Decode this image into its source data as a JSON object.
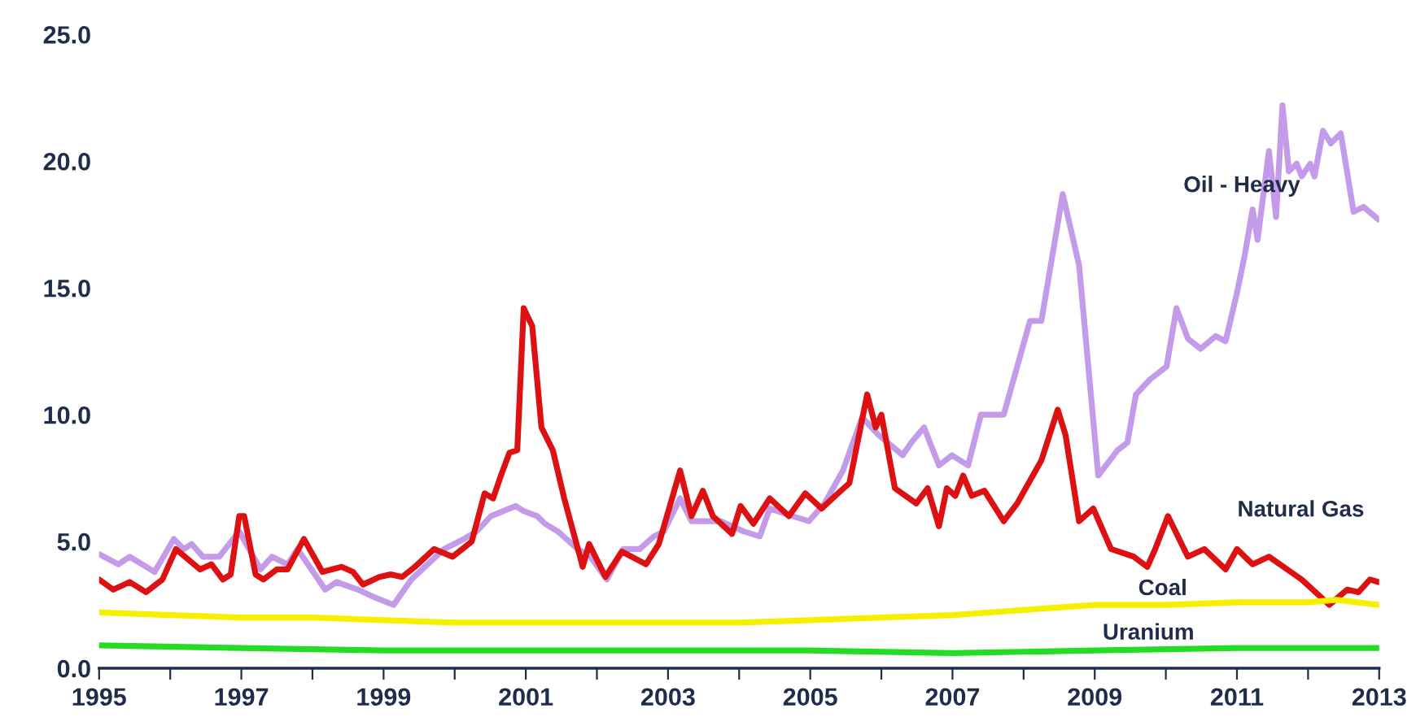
{
  "chart_data": {
    "type": "line",
    "xlim": [
      1995,
      2013
    ],
    "ylim": [
      0,
      25
    ],
    "xticks": [
      1995,
      {
        "value": 1996,
        "label": null
      },
      1997,
      {
        "value": 1998,
        "label": null
      },
      1999,
      {
        "value": 2000,
        "label": null
      },
      2001,
      {
        "value": 2002,
        "label": null
      },
      2003,
      {
        "value": 2004,
        "label": null
      },
      2005,
      {
        "value": 2006,
        "label": null
      },
      2007,
      {
        "value": 2008,
        "label": null
      },
      2009,
      {
        "value": 2010,
        "label": null
      },
      2011,
      {
        "value": 2012,
        "label": null
      },
      2013
    ],
    "yticks": [
      {
        "value": 0,
        "label": "0.0"
      },
      {
        "value": 5,
        "label": "5.0"
      },
      {
        "value": 10,
        "label": "10.0"
      },
      {
        "value": 15,
        "label": "15.0"
      },
      {
        "value": 20,
        "label": "20.0"
      },
      {
        "value": 25,
        "label": "25.0"
      }
    ],
    "grid": false,
    "legend": false,
    "marker": "none",
    "line_style": "solid",
    "series": [
      {
        "name": "Oil - Heavy",
        "color": "#c39be8",
        "x": [
          1995.0,
          1995.27,
          1995.43,
          1995.78,
          1996.05,
          1996.19,
          1996.3,
          1996.46,
          1996.69,
          1996.97,
          1997.27,
          1997.43,
          1997.65,
          1997.79,
          1998.18,
          1998.34,
          1998.64,
          1998.87,
          1999.14,
          1999.39,
          1999.62,
          1999.85,
          2000.13,
          2000.31,
          2000.51,
          2000.86,
          2000.97,
          2001.16,
          2001.27,
          2001.45,
          2001.73,
          2001.91,
          2002.14,
          2002.37,
          2002.6,
          2002.8,
          2002.94,
          2003.17,
          2003.33,
          2003.51,
          2003.74,
          2004.06,
          2004.29,
          2004.43,
          2004.75,
          2004.98,
          2005.2,
          2005.46,
          2005.73,
          2005.96,
          2006.3,
          2006.42,
          2006.6,
          2006.81,
          2006.99,
          2007.22,
          2007.4,
          2007.72,
          2008.09,
          2008.25,
          2008.55,
          2008.78,
          2009.05,
          2009.32,
          2009.46,
          2009.58,
          2009.78,
          2010.01,
          2010.15,
          2010.31,
          2010.49,
          2010.7,
          2010.84,
          2011.0,
          2011.11,
          2011.22,
          2011.29,
          2011.45,
          2011.55,
          2011.64,
          2011.73,
          2011.84,
          2011.91,
          2012.03,
          2012.09,
          2012.21,
          2012.32,
          2012.46,
          2012.64,
          2012.78,
          2012.99
        ],
        "values": [
          4.5,
          4.1,
          4.4,
          3.8,
          5.1,
          4.7,
          4.9,
          4.4,
          4.4,
          5.4,
          3.9,
          4.4,
          4.1,
          4.7,
          3.1,
          3.4,
          3.1,
          2.8,
          2.5,
          3.5,
          4.1,
          4.7,
          5.1,
          5.4,
          6.0,
          6.4,
          6.2,
          6.0,
          5.7,
          5.4,
          4.7,
          4.4,
          3.5,
          4.7,
          4.7,
          5.2,
          5.4,
          6.7,
          5.8,
          5.8,
          5.8,
          5.4,
          5.2,
          6.3,
          6.0,
          5.8,
          6.5,
          7.8,
          9.9,
          9.2,
          8.4,
          8.9,
          9.5,
          8.0,
          8.4,
          8.0,
          10.0,
          10.0,
          13.7,
          13.7,
          18.7,
          15.9,
          7.6,
          8.6,
          8.9,
          10.8,
          11.4,
          11.9,
          14.2,
          13.0,
          12.6,
          13.1,
          12.9,
          14.8,
          16.3,
          18.1,
          16.9,
          20.4,
          17.8,
          22.2,
          19.6,
          19.9,
          19.4,
          19.9,
          19.4,
          21.2,
          20.7,
          21.1,
          18.0,
          18.2,
          17.7
        ]
      },
      {
        "name": "Natural Gas",
        "color": "#dd1111",
        "x": [
          1995.0,
          1995.2,
          1995.43,
          1995.66,
          1995.89,
          1996.08,
          1996.42,
          1996.58,
          1996.74,
          1996.85,
          1996.97,
          1997.04,
          1997.2,
          1997.31,
          1997.5,
          1997.65,
          1997.88,
          1998.14,
          1998.41,
          1998.57,
          1998.71,
          1998.94,
          1999.1,
          1999.26,
          1999.44,
          1999.71,
          1999.97,
          2000.24,
          2000.42,
          2000.54,
          2000.65,
          2000.77,
          2000.88,
          2000.97,
          2001.09,
          2001.22,
          2001.38,
          2001.54,
          2001.8,
          2001.89,
          2002.12,
          2002.35,
          2002.69,
          2002.87,
          2003.17,
          2003.33,
          2003.49,
          2003.63,
          2003.9,
          2004.02,
          2004.2,
          2004.43,
          2004.7,
          2004.93,
          2005.16,
          2005.39,
          2005.55,
          2005.8,
          2005.92,
          2006.0,
          2006.19,
          2006.49,
          2006.65,
          2006.81,
          2006.92,
          2007.04,
          2007.15,
          2007.27,
          2007.45,
          2007.72,
          2007.91,
          2008.25,
          2008.48,
          2008.59,
          2008.78,
          2008.98,
          2009.23,
          2009.55,
          2009.74,
          2009.85,
          2010.03,
          2010.31,
          2010.54,
          2010.84,
          2011.0,
          2011.22,
          2011.45,
          2011.91,
          2012.3,
          2012.55,
          2012.71,
          2012.87,
          2012.99
        ],
        "values": [
          3.5,
          3.1,
          3.4,
          3.0,
          3.5,
          4.7,
          3.9,
          4.1,
          3.5,
          3.7,
          6.0,
          6.0,
          3.7,
          3.5,
          3.9,
          3.9,
          5.1,
          3.8,
          4.0,
          3.8,
          3.3,
          3.6,
          3.7,
          3.6,
          4.0,
          4.7,
          4.4,
          5.0,
          6.9,
          6.7,
          7.6,
          8.5,
          8.6,
          14.2,
          13.5,
          9.5,
          8.6,
          6.7,
          4.0,
          4.9,
          3.6,
          4.6,
          4.1,
          4.9,
          7.8,
          6.0,
          7.0,
          6.0,
          5.3,
          6.4,
          5.7,
          6.7,
          6.0,
          6.9,
          6.3,
          6.9,
          7.3,
          10.8,
          9.5,
          10.0,
          7.1,
          6.5,
          7.1,
          5.6,
          7.1,
          6.8,
          7.6,
          6.8,
          7.0,
          5.8,
          6.5,
          8.2,
          10.2,
          9.2,
          5.8,
          6.3,
          4.7,
          4.4,
          4.0,
          4.7,
          6.0,
          4.4,
          4.7,
          3.9,
          4.7,
          4.1,
          4.4,
          3.5,
          2.5,
          3.1,
          3.0,
          3.5,
          3.4
        ]
      },
      {
        "name": "Coal",
        "color": "#f5f000",
        "x": [
          1995,
          1996,
          1997,
          1998,
          1999,
          2000,
          2001,
          2002,
          2003,
          2004,
          2005,
          2006,
          2007,
          2008,
          2009,
          2010,
          2011,
          2012,
          2012.4,
          2013
        ],
        "values": [
          2.2,
          2.1,
          2.0,
          2.0,
          1.9,
          1.8,
          1.8,
          1.8,
          1.8,
          1.8,
          1.9,
          2.0,
          2.1,
          2.3,
          2.5,
          2.5,
          2.6,
          2.6,
          2.7,
          2.5
        ]
      },
      {
        "name": "Uranium",
        "color": "#22dd22",
        "x": [
          1995,
          1997,
          1999,
          2001,
          2003,
          2005,
          2007,
          2009,
          2011,
          2013
        ],
        "values": [
          0.9,
          0.8,
          0.7,
          0.7,
          0.7,
          0.7,
          0.6,
          0.7,
          0.8,
          0.8
        ]
      }
    ]
  }
}
